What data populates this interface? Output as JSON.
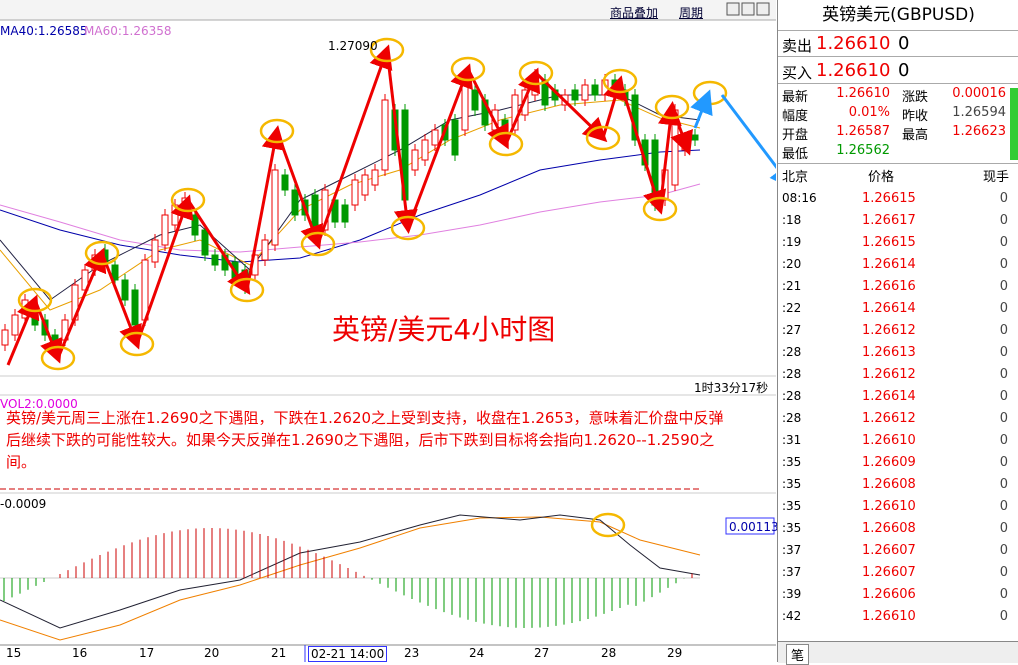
{
  "toolbar": {
    "overlay": "商品叠加",
    "period": "周期"
  },
  "chart": {
    "indicators": [
      "MA40:1.26585",
      "MA60:1.26358"
    ],
    "high_label": "1.27090",
    "title": "英镑/美元4小时图",
    "countdown": "1时33分17秒",
    "volume": "VOL2:0.0000",
    "commentary": "英镑/美元周三上涨在1.2690之下遇阻，下跌在1.2620之上受到支持，收盘在1.2653，意味着汇价盘中反弹后继续下跌的可能性较大。如果今天反弹在1.2690之下遇阻，后市下跌到目标将会指向1.2620--1.2590之间。",
    "macd_label": "-0.0009",
    "macd_value": "0.00113",
    "x_labels": [
      "15",
      "16",
      "17",
      "20",
      "21",
      "02-21 14:00",
      "23",
      "24",
      "27",
      "28",
      "29"
    ]
  },
  "quote": {
    "title": "英镑美元(GBPUSD)",
    "sell": {
      "label": "卖出",
      "price": "1.26610",
      "volume": "0"
    },
    "buy": {
      "label": "买入",
      "price": "1.26610",
      "volume": "0"
    },
    "stats": [
      [
        "最新",
        "1.26610",
        "涨跌",
        "0.00016"
      ],
      [
        "幅度",
        "0.01%",
        "昨收",
        "1.26594"
      ],
      [
        "开盘",
        "1.26587",
        "最高",
        "1.26623"
      ],
      [
        "最低",
        "1.26562"
      ]
    ],
    "ticks_header": [
      "北京",
      "价格",
      "现手"
    ],
    "ticks": [
      [
        "08:16",
        "1.26615",
        "0"
      ],
      [
        ":18",
        "1.26617",
        "0"
      ],
      [
        ":19",
        "1.26615",
        "0"
      ],
      [
        ":20",
        "1.26614",
        "0"
      ],
      [
        ":21",
        "1.26616",
        "0"
      ],
      [
        ":22",
        "1.26614",
        "0"
      ],
      [
        ":27",
        "1.26612",
        "0"
      ],
      [
        ":28",
        "1.26613",
        "0"
      ],
      [
        ":28",
        "1.26612",
        "0"
      ],
      [
        ":28",
        "1.26614",
        "0"
      ],
      [
        ":28",
        "1.26612",
        "0"
      ],
      [
        ":31",
        "1.26610",
        "0"
      ],
      [
        ":35",
        "1.26609",
        "0"
      ],
      [
        ":35",
        "1.26608",
        "0"
      ],
      [
        ":35",
        "1.26610",
        "0"
      ],
      [
        ":35",
        "1.26608",
        "0"
      ],
      [
        ":37",
        "1.26607",
        "0"
      ],
      [
        ":37",
        "1.26607",
        "0"
      ],
      [
        ":39",
        "1.26606",
        "0"
      ],
      [
        ":42",
        "1.26610",
        "0"
      ]
    ]
  },
  "footer_tab": "笔"
}
